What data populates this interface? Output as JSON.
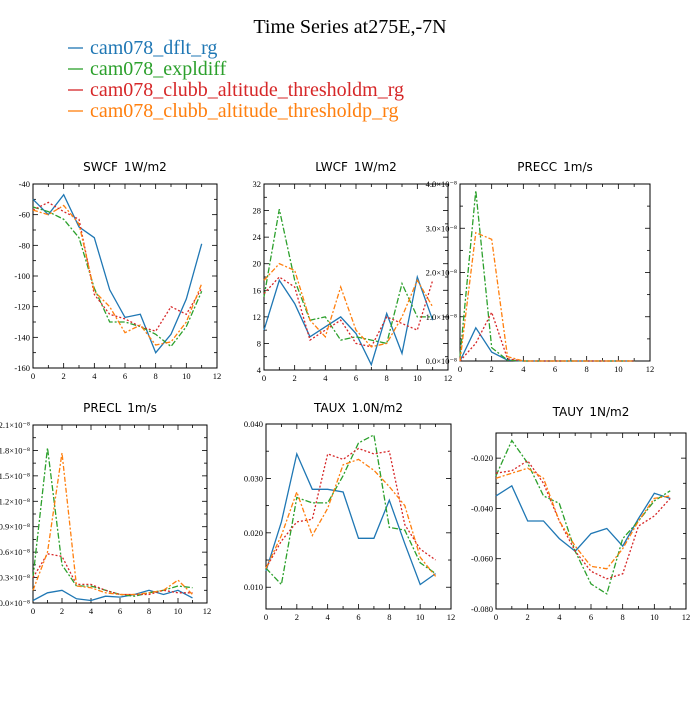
{
  "figure_title": "Time Series at275E,-7N",
  "legend": [
    {
      "name": "cam078_dflt_rg",
      "color": "#1f77b4"
    },
    {
      "name": "cam078_expldiff",
      "color": "#2ca02c"
    },
    {
      "name": "cam078_clubb_altitude_thresholdm_rg",
      "color": "#d62728"
    },
    {
      "name": "cam078_clubb_altitude_thresholdp_rg",
      "color": "#ff7f0e"
    }
  ],
  "chart_data": [
    {
      "type": "line",
      "title": "SWCF 1W/m2",
      "x": [
        0,
        1,
        2,
        3,
        4,
        5,
        6,
        7,
        8,
        9,
        10,
        11
      ],
      "xlim": [
        0,
        12
      ],
      "xticks": [
        "0",
        "2",
        "4",
        "6",
        "8",
        "10",
        "12"
      ],
      "ylim": [
        -160,
        -40
      ],
      "yticks": [
        "-160",
        "-140",
        "-120",
        "-100",
        "-80",
        "-60",
        "-40"
      ],
      "series": [
        {
          "name": "cam078_dflt_rg",
          "values": [
            -50,
            -60,
            -47,
            -68,
            -75,
            -109,
            -127,
            -125,
            -150,
            -138,
            -115,
            -79
          ]
        },
        {
          "name": "cam078_expldiff",
          "values": [
            -55,
            -58,
            -63,
            -75,
            -108,
            -130,
            -130,
            -133,
            -138,
            -146,
            -133,
            -110
          ]
        },
        {
          "name": "cam078_clubb_altitude_thresholdm_rg",
          "values": [
            -57,
            -52,
            -58,
            -63,
            -112,
            -125,
            -128,
            -133,
            -136,
            -120,
            -125,
            -108
          ]
        },
        {
          "name": "cam078_clubb_altitude_thresholdp_rg",
          "values": [
            -57,
            -60,
            -54,
            -66,
            -110,
            -120,
            -137,
            -132,
            -145,
            -143,
            -130,
            -105
          ]
        }
      ]
    },
    {
      "type": "line",
      "title": "LWCF 1W/m2",
      "x": [
        0,
        1,
        2,
        3,
        4,
        5,
        6,
        7,
        8,
        9,
        10,
        11
      ],
      "xlim": [
        0,
        12
      ],
      "xticks": [
        "0",
        "2",
        "4",
        "6",
        "8",
        "10",
        "12"
      ],
      "ylim": [
        4,
        32
      ],
      "yticks": [
        "4",
        "8",
        "12",
        "16",
        "20",
        "24",
        "28",
        "32"
      ],
      "series": [
        {
          "name": "cam078_dflt_rg",
          "values": [
            10,
            17.5,
            14,
            9,
            10.5,
            12,
            9.5,
            4.8,
            12.5,
            6.5,
            18,
            11.5
          ]
        },
        {
          "name": "cam078_expldiff",
          "values": [
            15,
            28.2,
            17.5,
            11.5,
            12,
            8.5,
            9,
            8.5,
            8,
            17,
            12,
            12
          ]
        },
        {
          "name": "cam078_clubb_altitude_thresholdm_rg",
          "values": [
            15.5,
            18,
            16.5,
            8.5,
            10,
            11.5,
            8,
            7.5,
            12,
            11,
            10,
            17.5
          ]
        },
        {
          "name": "cam078_clubb_altitude_thresholdp_rg",
          "values": [
            17.5,
            20,
            19,
            11.5,
            9,
            16.5,
            10,
            7.5,
            8,
            12,
            17.5,
            13.5
          ]
        }
      ]
    },
    {
      "type": "line",
      "title": "PRECC 1m/s",
      "x": [
        0,
        1,
        2,
        3,
        4,
        5,
        6,
        7,
        8,
        9,
        10,
        11
      ],
      "xlim": [
        0,
        12
      ],
      "xticks": [
        "0",
        "2",
        "4",
        "6",
        "8",
        "10",
        "12"
      ],
      "ylim": [
        0,
        4e-08
      ],
      "yticks": [
        "0.0×10⁻⁸",
        "1.0×10⁻⁸",
        "2.0×10⁻⁸",
        "3.0×10⁻⁸",
        "4.0×10⁻⁸"
      ],
      "series": [
        {
          "name": "cam078_dflt_rg",
          "values": [
            0.0,
            7.5e-09,
            2e-09,
            2e-10,
            0,
            0,
            0,
            0,
            0,
            0,
            0,
            0
          ]
        },
        {
          "name": "cam078_expldiff",
          "values": [
            1e-09,
            3.85e-08,
            3e-09,
            2e-10,
            0,
            0,
            0,
            0,
            0,
            0,
            0,
            0
          ]
        },
        {
          "name": "cam078_clubb_altitude_thresholdm_rg",
          "values": [
            0.0,
            4e-09,
            1.1e-08,
            5e-10,
            0,
            0,
            0,
            0,
            0,
            0,
            0,
            0
          ]
        },
        {
          "name": "cam078_clubb_altitude_thresholdp_rg",
          "values": [
            0.0,
            2.9e-08,
            2.75e-08,
            1e-09,
            0,
            0,
            0,
            0,
            0,
            0,
            0,
            0
          ]
        }
      ]
    },
    {
      "type": "line",
      "title": "PRECL 1m/s",
      "x": [
        0,
        1,
        2,
        3,
        4,
        5,
        6,
        7,
        8,
        9,
        10,
        11
      ],
      "xlim": [
        0,
        12
      ],
      "xticks": [
        "0",
        "2",
        "4",
        "6",
        "8",
        "10",
        "12"
      ],
      "ylim": [
        0,
        2.1e-08
      ],
      "yticks": [
        "0.0×10⁻⁸",
        "0.3×10⁻⁸",
        "0.6×10⁻⁸",
        "0.9×10⁻⁸",
        "1.2×10⁻⁸",
        "1.5×10⁻⁸",
        "1.8×10⁻⁸",
        "2.1×10⁻⁸"
      ],
      "series": [
        {
          "name": "cam078_dflt_rg",
          "values": [
            3e-10,
            1.2e-09,
            1.5e-09,
            5e-10,
            3e-10,
            8e-10,
            7e-10,
            1e-09,
            1.5e-09,
            1e-09,
            1.5e-09,
            6e-10
          ]
        },
        {
          "name": "cam078_expldiff",
          "values": [
            3e-09,
            1.83e-08,
            4.5e-09,
            2e-09,
            2e-09,
            1.5e-09,
            1e-09,
            8e-10,
            1.2e-09,
            1.5e-09,
            2e-09,
            1.8e-09
          ]
        },
        {
          "name": "cam078_clubb_altitude_thresholdm_rg",
          "values": [
            3e-09,
            5.8e-09,
            5.5e-09,
            2.2e-09,
            2.2e-09,
            1.5e-09,
            1e-09,
            1e-09,
            1e-09,
            1.5e-09,
            1.2e-09,
            1.2e-09
          ]
        },
        {
          "name": "cam078_clubb_altitude_thresholdp_rg",
          "values": [
            1.5e-09,
            6e-09,
            1.77e-08,
            2e-09,
            1.8e-09,
            1.2e-09,
            1e-09,
            1e-09,
            1.2e-09,
            1.5e-09,
            2.7e-09,
            1e-09
          ]
        }
      ]
    },
    {
      "type": "line",
      "title": "TAUX 1.0N/m2",
      "x": [
        0,
        1,
        2,
        3,
        4,
        5,
        6,
        7,
        8,
        9,
        10,
        11
      ],
      "xlim": [
        0,
        12
      ],
      "xticks": [
        "0",
        "2",
        "4",
        "6",
        "8",
        "10",
        "12"
      ],
      "ylim": [
        0.006,
        0.04
      ],
      "yticks": [
        "0.010",
        "0.020",
        "0.030",
        "0.040"
      ],
      "series": [
        {
          "name": "cam078_dflt_rg",
          "values": [
            0.013,
            0.022,
            0.0345,
            0.028,
            0.028,
            0.0275,
            0.019,
            0.019,
            0.026,
            0.018,
            0.0105,
            0.0125
          ]
        },
        {
          "name": "cam078_expldiff",
          "values": [
            0.0135,
            0.0105,
            0.0265,
            0.0255,
            0.0255,
            0.0305,
            0.0365,
            0.038,
            0.021,
            0.0205,
            0.0145,
            0.0125
          ]
        },
        {
          "name": "cam078_clubb_altitude_thresholdm_rg",
          "values": [
            0.0135,
            0.0185,
            0.022,
            0.0225,
            0.0345,
            0.0335,
            0.0355,
            0.0345,
            0.035,
            0.0215,
            0.017,
            0.015
          ]
        },
        {
          "name": "cam078_clubb_altitude_thresholdp_rg",
          "values": [
            0.0135,
            0.0195,
            0.0275,
            0.0195,
            0.0245,
            0.0325,
            0.0335,
            0.0315,
            0.0285,
            0.025,
            0.0155,
            0.012
          ]
        }
      ]
    },
    {
      "type": "line",
      "title": "TAUY 1N/m2",
      "x": [
        0,
        1,
        2,
        3,
        4,
        5,
        6,
        7,
        8,
        9,
        10,
        11
      ],
      "xlim": [
        0,
        12
      ],
      "xticks": [
        "0",
        "2",
        "4",
        "6",
        "8",
        "10",
        "12"
      ],
      "ylim": [
        -0.08,
        -0.01
      ],
      "yticks": [
        "-0.080",
        "-0.060",
        "-0.040",
        "-0.020"
      ],
      "series": [
        {
          "name": "cam078_dflt_rg",
          "values": [
            -0.035,
            -0.031,
            -0.045,
            -0.045,
            -0.052,
            -0.057,
            -0.05,
            -0.048,
            -0.055,
            -0.044,
            -0.034,
            -0.036
          ]
        },
        {
          "name": "cam078_expldiff",
          "values": [
            -0.027,
            -0.013,
            -0.022,
            -0.035,
            -0.038,
            -0.057,
            -0.07,
            -0.074,
            -0.052,
            -0.045,
            -0.037,
            -0.033
          ]
        },
        {
          "name": "cam078_clubb_altitude_thresholdm_rg",
          "values": [
            -0.026,
            -0.025,
            -0.021,
            -0.03,
            -0.045,
            -0.057,
            -0.065,
            -0.068,
            -0.066,
            -0.047,
            -0.043,
            -0.036
          ]
        },
        {
          "name": "cam078_clubb_altitude_thresholdp_rg",
          "values": [
            -0.028,
            -0.026,
            -0.024,
            -0.028,
            -0.045,
            -0.055,
            -0.063,
            -0.064,
            -0.056,
            -0.045,
            -0.036,
            -0.035
          ]
        }
      ]
    }
  ]
}
